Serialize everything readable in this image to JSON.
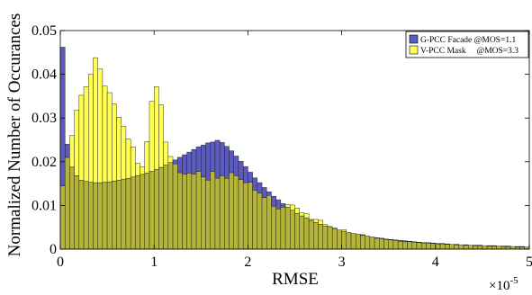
{
  "chart_data": {
    "type": "bar",
    "xlabel": "RMSE",
    "ylabel": "Normalized Number of Occurances",
    "x_multiplier": "×10",
    "x_multiplier_exp": "-5",
    "xlim": [
      0,
      5
    ],
    "ylim": [
      0,
      0.05
    ],
    "xticks": [
      "0",
      "1",
      "2",
      "3",
      "4",
      "5"
    ],
    "yticks": [
      "0",
      "0.01",
      "0.02",
      "0.03",
      "0.04",
      "0.05"
    ],
    "legend_position": "top-right",
    "bin_width": 0.05,
    "x": [
      0.025,
      0.075,
      0.125,
      0.175,
      0.225,
      0.275,
      0.325,
      0.375,
      0.425,
      0.475,
      0.525,
      0.575,
      0.625,
      0.675,
      0.725,
      0.775,
      0.825,
      0.875,
      0.925,
      0.975,
      1.025,
      1.075,
      1.125,
      1.175,
      1.225,
      1.275,
      1.325,
      1.375,
      1.425,
      1.475,
      1.525,
      1.575,
      1.625,
      1.675,
      1.725,
      1.775,
      1.825,
      1.875,
      1.925,
      1.975,
      2.025,
      2.075,
      2.125,
      2.175,
      2.225,
      2.275,
      2.325,
      2.375,
      2.425,
      2.475,
      2.525,
      2.575,
      2.625,
      2.675,
      2.725,
      2.775,
      2.825,
      2.875,
      2.925,
      2.975,
      3.025,
      3.075,
      3.125,
      3.175,
      3.225,
      3.275,
      3.325,
      3.375,
      3.425,
      3.475,
      3.525,
      3.575,
      3.625,
      3.675,
      3.725,
      3.775,
      3.825,
      3.875,
      3.925,
      3.975,
      4.025,
      4.075,
      4.125,
      4.175,
      4.225,
      4.275,
      4.325,
      4.375,
      4.425,
      4.475,
      4.525,
      4.575,
      4.625,
      4.675,
      4.725,
      4.775,
      4.825,
      4.875,
      4.925,
      4.975
    ],
    "series": [
      {
        "name": "G-PCC Facade @MOS=1.1",
        "color": "#5b5bbf",
        "values": [
          0.0462,
          0.024,
          0.0188,
          0.0168,
          0.0158,
          0.0155,
          0.0153,
          0.0152,
          0.0152,
          0.0153,
          0.0154,
          0.0156,
          0.0158,
          0.016,
          0.0162,
          0.0165,
          0.0168,
          0.0171,
          0.0174,
          0.0178,
          0.0182,
          0.0187,
          0.0192,
          0.0198,
          0.0204,
          0.021,
          0.0216,
          0.0222,
          0.0228,
          0.0234,
          0.0238,
          0.0243,
          0.0245,
          0.0249,
          0.0244,
          0.0235,
          0.0225,
          0.0213,
          0.0201,
          0.0189,
          0.0176,
          0.0163,
          0.0152,
          0.0141,
          0.0131,
          0.0121,
          0.0113,
          0.0104,
          0.0096,
          0.0089,
          0.0082,
          0.0076,
          0.0071,
          0.0066,
          0.0061,
          0.0057,
          0.0053,
          0.005,
          0.0047,
          0.0044,
          0.0041,
          0.0038,
          0.0036,
          0.0034,
          0.0032,
          0.003,
          0.0028,
          0.0026,
          0.0025,
          0.0023,
          0.0022,
          0.0021,
          0.002,
          0.0019,
          0.0018,
          0.0017,
          0.0016,
          0.0015,
          0.0015,
          0.0014,
          0.0013,
          0.0013,
          0.0012,
          0.0011,
          0.0011,
          0.001,
          0.001,
          0.0009,
          0.0009,
          0.0009,
          0.0008,
          0.0008,
          0.0008,
          0.0007,
          0.0007,
          0.0007,
          0.0006,
          0.0006,
          0.0006,
          0.0005
        ]
      },
      {
        "name": "V-PCC Mask     @MOS=3.3",
        "color": "#ffff55",
        "values": [
          0.0145,
          0.021,
          0.026,
          0.0318,
          0.0352,
          0.0372,
          0.04,
          0.0438,
          0.0412,
          0.0373,
          0.0358,
          0.0332,
          0.0302,
          0.0281,
          0.0252,
          0.0234,
          0.0196,
          0.0188,
          0.0246,
          0.0338,
          0.0372,
          0.033,
          0.0245,
          0.0212,
          0.0195,
          0.0175,
          0.0172,
          0.0174,
          0.0172,
          0.0178,
          0.0165,
          0.0158,
          0.0178,
          0.0162,
          0.0168,
          0.0162,
          0.0175,
          0.0168,
          0.0159,
          0.0152,
          0.0153,
          0.0135,
          0.0128,
          0.0118,
          0.0123,
          0.0098,
          0.0092,
          0.0096,
          0.0102,
          0.0101,
          0.0094,
          0.0083,
          0.0081,
          0.0068,
          0.0068,
          0.0066,
          0.0056,
          0.0052,
          0.0049,
          0.0044,
          0.0044,
          0.0038,
          0.0036,
          0.0034,
          0.0033,
          0.003,
          0.0028,
          0.0025,
          0.0024,
          0.0022,
          0.0021,
          0.002,
          0.0018,
          0.0017,
          0.0017,
          0.0016,
          0.0015,
          0.0014,
          0.0014,
          0.0013,
          0.0012,
          0.0012,
          0.0011,
          0.0011,
          0.001,
          0.001,
          0.0009,
          0.0009,
          0.0008,
          0.0008,
          0.0008,
          0.0007,
          0.0007,
          0.0007,
          0.0006,
          0.0006,
          0.0006,
          0.0005,
          0.0005,
          0.0005
        ]
      }
    ],
    "overlap_color": "#b4b43a"
  }
}
